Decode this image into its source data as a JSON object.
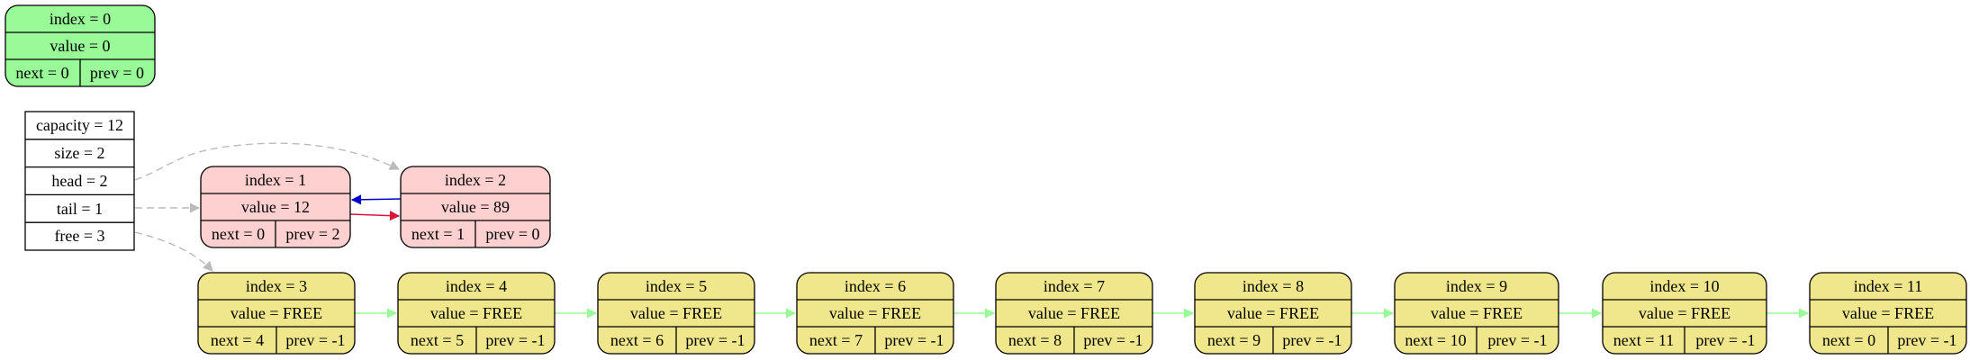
{
  "colors": {
    "sentinel_fill": "#98fb98",
    "used_fill": "#ffd0d0",
    "free_fill": "#f0e68c",
    "info_fill": "#ffffff",
    "stroke": "#000000",
    "dashed_edge": "#bbbbbb",
    "next_edge": "#dc143c",
    "prev_edge": "#0000cd",
    "free_edge": "#98fb98"
  },
  "sentinel": {
    "index": "index = 0",
    "value": "value = 0",
    "next": "next = 0",
    "prev": "prev = 0"
  },
  "info": {
    "rows": [
      "capacity = 12",
      "size = 2",
      "head = 2",
      "tail = 1",
      "free = 3"
    ]
  },
  "used_nodes": [
    {
      "index": "index = 1",
      "value": "value = 12",
      "next": "next = 0",
      "prev": "prev = 2"
    },
    {
      "index": "index = 2",
      "value": "value = 89",
      "next": "next = 1",
      "prev": "prev = 0"
    }
  ],
  "free_nodes": [
    {
      "index": "index = 3",
      "value": "value = FREE",
      "next": "next = 4",
      "prev": "prev = -1"
    },
    {
      "index": "index = 4",
      "value": "value = FREE",
      "next": "next = 5",
      "prev": "prev = -1"
    },
    {
      "index": "index = 5",
      "value": "value = FREE",
      "next": "next = 6",
      "prev": "prev = -1"
    },
    {
      "index": "index = 6",
      "value": "value = FREE",
      "next": "next = 7",
      "prev": "prev = -1"
    },
    {
      "index": "index = 7",
      "value": "value = FREE",
      "next": "next = 8",
      "prev": "prev = -1"
    },
    {
      "index": "index = 8",
      "value": "value = FREE",
      "next": "next = 9",
      "prev": "prev = -1"
    },
    {
      "index": "index = 9",
      "value": "value = FREE",
      "next": "next = 10",
      "prev": "prev = -1"
    },
    {
      "index": "index = 10",
      "value": "value = FREE",
      "next": "next = 11",
      "prev": "prev = -1"
    },
    {
      "index": "index = 11",
      "value": "value = FREE",
      "next": "next = 0",
      "prev": "prev = -1"
    }
  ]
}
